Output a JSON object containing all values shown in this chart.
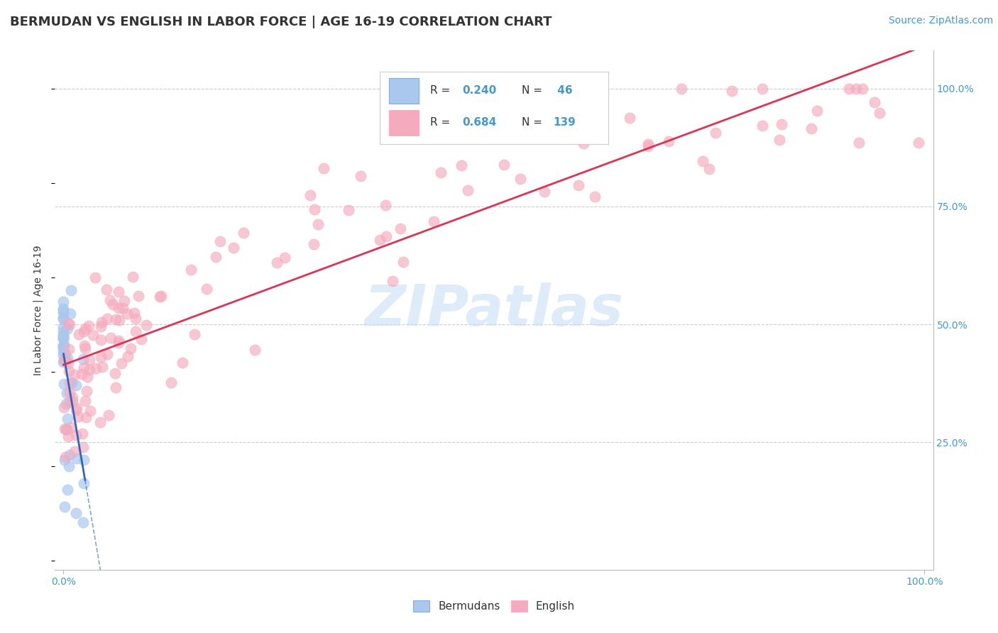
{
  "title": "BERMUDAN VS ENGLISH IN LABOR FORCE | AGE 16-19 CORRELATION CHART",
  "source": "Source: ZipAtlas.com",
  "ylabel": "In Labor Force | Age 16-19",
  "bermudans_color": "#aac8ee",
  "english_color": "#f5aabe",
  "regression_bermudans_color": "#3366bb",
  "regression_english_color": "#dd3355",
  "watermark_color": "#c8dff5",
  "tick_color": "#4499cc",
  "grid_color": "#cccccc",
  "title_fontsize": 13,
  "axis_label_fontsize": 10,
  "tick_fontsize": 10,
  "source_fontsize": 10,
  "legend_r1": "0.240",
  "legend_n1": "46",
  "legend_r2": "0.684",
  "legend_n2": "139"
}
